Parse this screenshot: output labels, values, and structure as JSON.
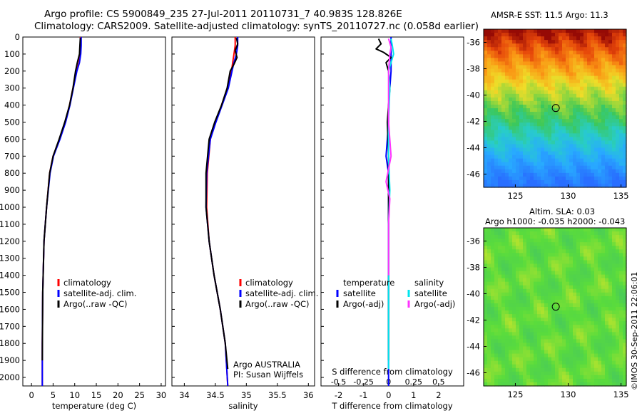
{
  "header": {
    "line1": "Argo profile: CS 5900849_235 27-Jul-2011 20110731_7 40.983S 128.826E",
    "line2": "Climatology: CARS2009. Satellite-adjusted climatology: synTS_20110727.nc (0.058d earlier)"
  },
  "map1": {
    "title": "AMSR-E SST: 11.5 Argo: 11.3"
  },
  "map2": {
    "title_line1": "Altim. SLA: 0.03",
    "title_line2": "Argo h1000: -0.035 h2000: -0.043"
  },
  "credit": "©IMOS 30-Sep-2011 22:06:01",
  "platform": {
    "line1": "Argo AUSTRALIA",
    "line2": "PI: Susan Wijffels"
  },
  "colors": {
    "climatology": "#ff0000",
    "satellite": "#0000ff",
    "argo": "#000000",
    "sal_satellite": "#00e5ee",
    "sal_argo": "#ff33ff"
  },
  "chart_data": [
    {
      "type": "line",
      "xlabel": "temperature (deg C)",
      "ylabel": "",
      "xlim": [
        -2,
        31
      ],
      "ylim": [
        2050,
        0
      ],
      "xticks": [
        0,
        5,
        10,
        15,
        20,
        25,
        30
      ],
      "yticks": [
        0,
        100,
        200,
        300,
        400,
        500,
        600,
        700,
        800,
        900,
        1000,
        1100,
        1200,
        1300,
        1400,
        1500,
        1600,
        1700,
        1800,
        1900,
        2000
      ],
      "legend": [
        "climatology",
        "satellite-adj. clim.",
        "Argo(..raw -QC)"
      ],
      "series": [
        {
          "name": "climatology",
          "color": "#ff0000",
          "x": [
            11.3,
            11.4,
            11.3,
            11.0,
            10.4,
            9.6,
            8.8,
            7.8,
            6.5,
            5.0,
            4.2,
            3.5,
            2.9,
            2.6,
            2.5,
            2.5
          ],
          "y": [
            0,
            50,
            100,
            150,
            200,
            300,
            400,
            500,
            600,
            700,
            800,
            1000,
            1200,
            1500,
            1800,
            2050
          ]
        },
        {
          "name": "satellite-adj. clim.",
          "color": "#0000ff",
          "x": [
            11.5,
            11.5,
            11.4,
            11.1,
            10.5,
            9.7,
            8.9,
            7.9,
            6.6,
            5.1,
            4.3,
            3.5,
            2.9,
            2.6,
            2.5,
            2.5
          ],
          "y": [
            0,
            50,
            100,
            150,
            200,
            300,
            400,
            500,
            600,
            700,
            800,
            1000,
            1200,
            1500,
            1800,
            2050
          ]
        },
        {
          "name": "Argo(..raw -QC)",
          "color": "#000000",
          "x": [
            11.3,
            11.2,
            11.1,
            10.6,
            10.2,
            9.6,
            8.8,
            7.7,
            6.4,
            5.0,
            4.2,
            3.5,
            2.9,
            2.6,
            2.5
          ],
          "y": [
            5,
            50,
            100,
            150,
            200,
            300,
            400,
            500,
            600,
            700,
            800,
            1000,
            1200,
            1500,
            1900
          ]
        }
      ]
    },
    {
      "type": "line",
      "xlabel": "salinity",
      "ylabel": "",
      "xlim": [
        33.8,
        36.1
      ],
      "ylim": [
        2050,
        0
      ],
      "xticks": [
        34,
        34.5,
        35,
        35.5,
        36
      ],
      "legend": [
        "climatology",
        "satellite-adj. clim.",
        "Argo(..raw -QC)"
      ],
      "series": [
        {
          "name": "climatology",
          "color": "#ff0000",
          "x": [
            34.82,
            34.82,
            34.8,
            34.78,
            34.76,
            34.7,
            34.6,
            34.5,
            34.42,
            34.37,
            34.36,
            34.4,
            34.48,
            34.58,
            34.66,
            34.7
          ],
          "y": [
            0,
            50,
            100,
            150,
            200,
            300,
            400,
            500,
            600,
            800,
            1000,
            1200,
            1400,
            1600,
            1800,
            2050
          ]
        },
        {
          "name": "satellite-adj. clim.",
          "color": "#0000ff",
          "x": [
            34.86,
            34.86,
            34.84,
            34.8,
            34.77,
            34.71,
            34.61,
            34.51,
            34.42,
            34.36,
            34.35,
            34.4,
            34.48,
            34.58,
            34.66,
            34.7
          ],
          "y": [
            0,
            50,
            100,
            150,
            200,
            300,
            400,
            500,
            600,
            800,
            1000,
            1200,
            1400,
            1600,
            1800,
            2050
          ]
        },
        {
          "name": "Argo(..raw -QC)",
          "color": "#000000",
          "x": [
            34.84,
            34.86,
            34.82,
            34.85,
            34.8,
            34.74,
            34.69,
            34.6,
            34.49,
            34.4,
            34.35,
            34.35,
            34.4,
            34.48,
            34.58,
            34.66,
            34.7
          ],
          "y": [
            5,
            40,
            80,
            120,
            160,
            200,
            300,
            400,
            500,
            600,
            800,
            1000,
            1200,
            1400,
            1600,
            1800,
            1950
          ]
        }
      ]
    },
    {
      "type": "line",
      "xlabel": "T difference from climatology",
      "xlabel_top": "S difference from climatology",
      "xlim": [
        -2.7,
        3.0
      ],
      "ylim": [
        2050,
        0
      ],
      "xticks": [
        -2,
        -1,
        0,
        1,
        2
      ],
      "xticks_top": [
        -0.5,
        -0.25,
        0,
        0.25,
        0.5
      ],
      "legend_temperature": "temperature",
      "legend_salinity": "salinity",
      "legend": [
        "satellite",
        "Argo(-adj)",
        "satellite",
        "Argo(-adj)"
      ],
      "series": [
        {
          "name": "temperature satellite",
          "color": "#0000ff",
          "x": [
            0.1,
            0.1,
            0.1,
            0.05,
            0,
            0,
            -0.05,
            -0.1,
            0,
            0,
            0,
            0,
            0,
            0
          ],
          "y": [
            0,
            100,
            200,
            300,
            400,
            500,
            600,
            700,
            800,
            1000,
            1200,
            1500,
            1800,
            2050
          ]
        },
        {
          "name": "temperature Argo(-adj)",
          "color": "#000000",
          "x": [
            -0.4,
            -0.3,
            -0.5,
            -0.2,
            0.1,
            -0.1,
            0,
            0.05,
            -0.05,
            0,
            0,
            0,
            0
          ],
          "y": [
            10,
            40,
            70,
            90,
            120,
            150,
            200,
            300,
            500,
            700,
            1000,
            1500,
            1900
          ]
        },
        {
          "name": "salinity satellite",
          "color": "#00e5ee",
          "x": [
            0.1,
            0.15,
            0.2,
            0.1,
            0,
            0.05,
            0,
            0,
            0.05,
            0,
            0,
            0,
            0
          ],
          "y": [
            10,
            50,
            100,
            150,
            200,
            300,
            500,
            700,
            900,
            1100,
            1400,
            1700,
            1950
          ]
        },
        {
          "name": "salinity Argo(-adj)",
          "color": "#ff33ff",
          "x": [
            0,
            0.1,
            0.05,
            0,
            0,
            0.1,
            -0.1,
            0.05,
            0,
            0
          ],
          "y": [
            10,
            60,
            100,
            200,
            500,
            700,
            850,
            950,
            1100,
            1400
          ]
        }
      ]
    },
    {
      "type": "heatmap",
      "title": "AMSR-E SST: 11.5 Argo: 11.3",
      "xlim": [
        122,
        135.5
      ],
      "ylim": [
        -47,
        -35
      ],
      "xticks": [
        125,
        130,
        135
      ],
      "yticks": [
        -36,
        -38,
        -40,
        -42,
        -44,
        -46
      ],
      "argo_position": [
        128.826,
        -40.983
      ]
    },
    {
      "type": "heatmap",
      "title": "Altim. SLA: 0.03",
      "xlim": [
        122,
        135.5
      ],
      "ylim": [
        -47,
        -35
      ],
      "xticks": [
        125,
        130,
        135
      ],
      "yticks": [
        -36,
        -38,
        -40,
        -42,
        -44,
        -46
      ],
      "argo_position": [
        128.826,
        -40.983
      ]
    }
  ]
}
